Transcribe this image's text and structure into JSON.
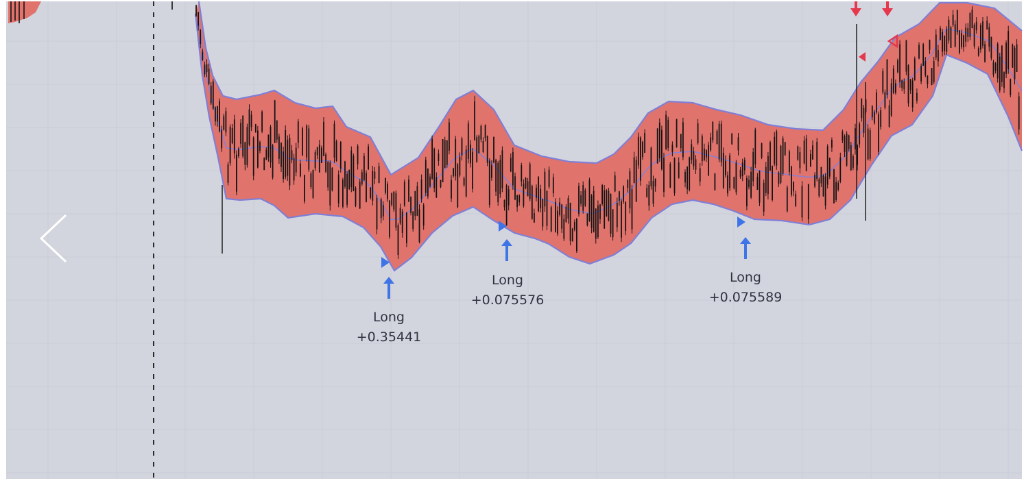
{
  "colors": {
    "background": "#d3d5de",
    "grid": "#c9ccd5",
    "band_fill": "#e0736c",
    "band_edge": "#7f7fd6",
    "band_mid": "#8a7fd0",
    "candle": "#141414",
    "long_marker": "#3f74e6",
    "short_marker": "#e5384d",
    "session_line": "#2a2a2a",
    "nav_arrow": "#ffffff"
  },
  "navigation": {
    "prev_icon": "chevron-left-icon"
  },
  "signals": [
    {
      "direction": "Long",
      "profit": "+0.35441"
    },
    {
      "direction": "Long",
      "profit": "+0.075576"
    },
    {
      "direction": "Long",
      "profit": "+0.075589"
    }
  ]
}
